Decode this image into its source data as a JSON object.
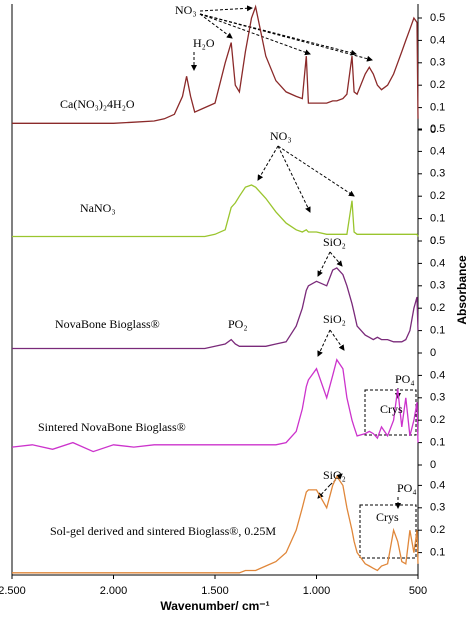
{
  "chart_data": {
    "type": "line",
    "xlabel": "Wavenumber/ cm⁻¹",
    "ylabel": "Absorbance",
    "xlim": [
      2500,
      500
    ],
    "xticks": [
      {
        "value": 2500,
        "label": "2.500"
      },
      {
        "value": 2000,
        "label": "2.000"
      },
      {
        "value": 1500,
        "label": "1.500"
      },
      {
        "value": 1000,
        "label": "1.000"
      },
      500
    ],
    "x": [
      2500,
      2400,
      2300,
      2200,
      2100,
      2000,
      1900,
      1800,
      1750,
      1700,
      1660,
      1640,
      1620,
      1600,
      1550,
      1500,
      1450,
      1420,
      1400,
      1380,
      1350,
      1320,
      1300,
      1250,
      1200,
      1150,
      1100,
      1070,
      1050,
      1040,
      1000,
      950,
      920,
      900,
      870,
      850,
      825,
      815,
      800,
      760,
      740,
      720,
      700,
      680,
      650,
      620,
      600,
      580,
      560,
      540,
      520,
      505,
      500
    ],
    "series": [
      {
        "name": "Ca(NO₃)₂4H₂O",
        "color": "#8b2a2a",
        "ylim": [
          0,
          0.5
        ],
        "yticks": [
          0,
          0.1,
          0.2,
          0.3,
          0.4,
          0.5
        ],
        "annotations": [
          "NO₃",
          "H₂O"
        ],
        "values": [
          0.03,
          0.03,
          0.03,
          0.03,
          0.03,
          0.03,
          0.035,
          0.04,
          0.05,
          0.07,
          0.15,
          0.24,
          0.15,
          0.08,
          0.1,
          0.12,
          0.3,
          0.39,
          0.2,
          0.17,
          0.35,
          0.5,
          0.55,
          0.33,
          0.22,
          0.17,
          0.15,
          0.14,
          0.33,
          0.12,
          0.12,
          0.12,
          0.13,
          0.13,
          0.14,
          0.16,
          0.33,
          0.17,
          0.16,
          0.25,
          0.28,
          0.25,
          0.2,
          0.18,
          0.2,
          0.25,
          0.3,
          0.35,
          0.4,
          0.45,
          0.5,
          0.48,
          0.05
        ]
      },
      {
        "name": "NaNO₃",
        "color": "#9ac52e",
        "ylim": [
          0,
          0.5
        ],
        "yticks": [
          0,
          0.1,
          0.2,
          0.3,
          0.4,
          0.5
        ],
        "annotations": [
          "NO₃"
        ],
        "values": [
          0.02,
          0.02,
          0.02,
          0.02,
          0.02,
          0.02,
          0.02,
          0.02,
          0.02,
          0.02,
          0.02,
          0.02,
          0.02,
          0.02,
          0.02,
          0.03,
          0.05,
          0.15,
          0.17,
          0.2,
          0.24,
          0.25,
          0.24,
          0.19,
          0.13,
          0.08,
          0.05,
          0.04,
          0.05,
          0.04,
          0.04,
          0.03,
          0.03,
          0.03,
          0.03,
          0.03,
          0.18,
          0.04,
          0.03,
          0.03,
          0.03,
          0.03,
          0.03,
          0.03,
          0.03,
          0.03,
          0.03,
          0.03,
          0.03,
          0.03,
          0.03,
          0.03,
          0.02
        ]
      },
      {
        "name": "NovaBone Bioglass®",
        "color": "#7a2a7a",
        "ylim": [
          0,
          0.5
        ],
        "yticks": [
          0,
          0.1,
          0.2,
          0.3,
          0.4,
          0.5
        ],
        "annotations": [
          "SiO₂",
          "PO₂"
        ],
        "values": [
          0.02,
          0.02,
          0.02,
          0.02,
          0.02,
          0.02,
          0.02,
          0.02,
          0.02,
          0.02,
          0.02,
          0.02,
          0.02,
          0.02,
          0.02,
          0.03,
          0.04,
          0.06,
          0.04,
          0.03,
          0.03,
          0.03,
          0.03,
          0.03,
          0.04,
          0.05,
          0.12,
          0.2,
          0.28,
          0.3,
          0.32,
          0.3,
          0.37,
          0.38,
          0.35,
          0.3,
          0.22,
          0.18,
          0.12,
          0.08,
          0.07,
          0.06,
          0.07,
          0.06,
          0.06,
          0.05,
          0.05,
          0.05,
          0.06,
          0.1,
          0.2,
          0.25,
          0.1
        ]
      },
      {
        "name": "Sintered NovaBone Bioglass®",
        "color": "#cc33cc",
        "ylim": [
          0,
          0.5
        ],
        "yticks": [
          0,
          0.1,
          0.2,
          0.3,
          0.4
        ],
        "annotations": [
          "SiO₂",
          "PO₄",
          "Crys"
        ],
        "values": [
          0.08,
          0.09,
          0.07,
          0.1,
          0.06,
          0.09,
          0.08,
          0.09,
          0.09,
          0.09,
          0.09,
          0.09,
          0.09,
          0.09,
          0.09,
          0.09,
          0.09,
          0.09,
          0.09,
          0.09,
          0.09,
          0.09,
          0.09,
          0.09,
          0.09,
          0.1,
          0.15,
          0.25,
          0.35,
          0.38,
          0.43,
          0.3,
          0.4,
          0.47,
          0.43,
          0.3,
          0.2,
          0.17,
          0.13,
          0.14,
          0.15,
          0.14,
          0.12,
          0.17,
          0.13,
          0.2,
          0.34,
          0.17,
          0.3,
          0.13,
          0.2,
          0.28,
          0.1
        ]
      },
      {
        "name": "Sol-gel derived and sintered Bioglass®, 0.25M",
        "color": "#e0873a",
        "ylim": [
          0,
          0.5
        ],
        "yticks": [
          0.1,
          0.2,
          0.3,
          0.4
        ],
        "annotations": [
          "SiO₂",
          "PO₄",
          "Crys"
        ],
        "values": [
          0.01,
          0.01,
          0.01,
          0.01,
          0.01,
          0.01,
          0.01,
          0.01,
          0.01,
          0.01,
          0.01,
          0.01,
          0.01,
          0.01,
          0.01,
          0.01,
          0.01,
          0.01,
          0.01,
          0.01,
          0.02,
          0.02,
          0.02,
          0.04,
          0.06,
          0.1,
          0.2,
          0.3,
          0.37,
          0.38,
          0.38,
          0.3,
          0.4,
          0.44,
          0.4,
          0.3,
          0.2,
          0.15,
          0.1,
          0.05,
          0.04,
          0.03,
          0.02,
          0.04,
          0.05,
          0.2,
          0.15,
          0.06,
          0.05,
          0.2,
          0.1,
          0.2,
          0.05
        ]
      }
    ]
  }
}
